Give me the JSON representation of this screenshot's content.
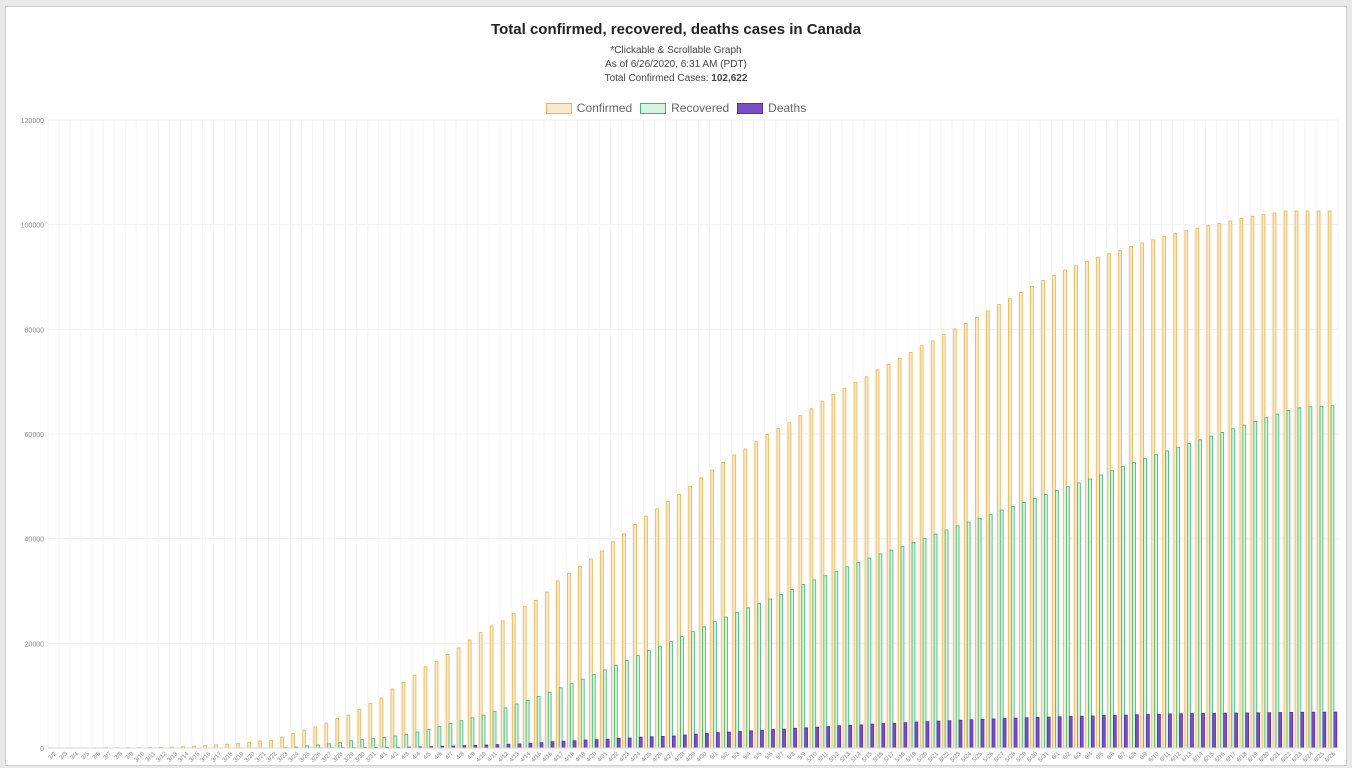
{
  "header": {
    "title": "Total confirmed, recovered, deaths cases in Canada",
    "note": "*Clickable & Scrollable Graph",
    "as_of": "As of 6/26/2020, 6:31 AM (PDT)",
    "total_label": "Total Confirmed Cases:",
    "total_value": "102,622"
  },
  "colors": {
    "confirmed_fill": "#fde9c7",
    "confirmed_border": "#eab44c",
    "recovered_fill": "#d5f5e3",
    "recovered_border": "#3fb56f",
    "deaths_fill": "#7b4fc6",
    "deaths_border": "#5b2ea6",
    "grid": "#f0f0f0",
    "tick": "#888888"
  },
  "chart_data": {
    "type": "bar",
    "title": "Total confirmed, recovered, deaths cases in Canada",
    "xlabel": "",
    "ylabel": "",
    "ylim": [
      0,
      120000
    ],
    "yticks": [
      0,
      20000,
      40000,
      60000,
      80000,
      100000,
      120000
    ],
    "grid": true,
    "legend_position": "top-center",
    "categories": [
      "3/2",
      "3/3",
      "3/4",
      "3/5",
      "3/6",
      "3/7",
      "3/8",
      "3/9",
      "3/10",
      "3/11",
      "3/12",
      "3/13",
      "3/14",
      "3/15",
      "3/16",
      "3/17",
      "3/18",
      "3/19",
      "3/20",
      "3/21",
      "3/22",
      "3/23",
      "3/24",
      "3/25",
      "3/26",
      "3/27",
      "3/28",
      "3/29",
      "3/30",
      "3/31",
      "4/1",
      "4/2",
      "4/3",
      "4/4",
      "4/5",
      "4/6",
      "4/7",
      "4/8",
      "4/9",
      "4/10",
      "4/11",
      "4/12",
      "4/13",
      "4/14",
      "4/15",
      "4/16",
      "4/17",
      "4/18",
      "4/19",
      "4/20",
      "4/21",
      "4/22",
      "4/23",
      "4/24",
      "4/25",
      "4/26",
      "4/27",
      "4/28",
      "4/29",
      "4/30",
      "5/1",
      "5/2",
      "5/3",
      "5/4",
      "5/5",
      "5/6",
      "5/7",
      "5/8",
      "5/9",
      "5/10",
      "5/11",
      "5/12",
      "5/13",
      "5/14",
      "5/15",
      "5/16",
      "5/17",
      "5/18",
      "5/19",
      "5/20",
      "5/21",
      "5/22",
      "5/23",
      "5/24",
      "5/25",
      "5/26",
      "5/27",
      "5/28",
      "5/29",
      "5/30",
      "5/31",
      "6/1",
      "6/2",
      "6/3",
      "6/4",
      "6/5",
      "6/6",
      "6/7",
      "6/8",
      "6/9",
      "6/10",
      "6/11",
      "6/12",
      "6/13",
      "6/14",
      "6/15",
      "6/16",
      "6/17",
      "6/18",
      "6/19",
      "6/20",
      "6/21",
      "6/22",
      "6/23",
      "6/24",
      "6/25",
      "6/26"
    ],
    "series": [
      {
        "name": "Confirmed",
        "values": [
          27,
          30,
          33,
          37,
          49,
          57,
          64,
          77,
          93,
          108,
          138,
          193,
          252,
          341,
          441,
          598,
          727,
          873,
          1087,
          1324,
          1470,
          2091,
          2792,
          3409,
          4043,
          4757,
          5655,
          6280,
          7398,
          8527,
          9560,
          11284,
          12519,
          13912,
          15512,
          16563,
          17883,
          19141,
          20654,
          22046,
          23316,
          24298,
          25680,
          27034,
          28208,
          29815,
          31927,
          33383,
          34659,
          36112,
          37658,
          39402,
          40935,
          42732,
          44307,
          45702,
          47132,
          48450,
          50007,
          51597,
          53104,
          54560,
          55991,
          57146,
          58539,
          59889,
          61061,
          62146,
          63513,
          64815,
          66264,
          67579,
          68751,
          69886,
          70919,
          72258,
          73307,
          74473,
          75585,
          76866,
          77798,
          78991,
          80095,
          81114,
          82279,
          83506,
          84758,
          85852,
          87046,
          88181,
          89340,
          90300,
          91322,
          92142,
          93009,
          93772,
          94451,
          95053,
          95811,
          96516,
          97114,
          97755,
          98345,
          98837,
          99337,
          99810,
          100249,
          100700,
          101205,
          101611,
          101917,
          102242,
          102622,
          102622,
          102622,
          102622,
          102622
        ]
      },
      {
        "name": "Recovered",
        "values": [
          6,
          6,
          6,
          6,
          8,
          8,
          8,
          8,
          8,
          8,
          8,
          8,
          8,
          8,
          9,
          9,
          9,
          9,
          9,
          11,
          14,
          82,
          185,
          398,
          576,
          789,
          1000,
          1372,
          1586,
          1785,
          2041,
          2298,
          2595,
          3051,
          3526,
          4079,
          4692,
          5210,
          5763,
          6285,
          7008,
          7655,
          8413,
          9110,
          9864,
          10662,
          11512,
          12357,
          13160,
          14049,
          14929,
          15821,
          16721,
          17658,
          18595,
          19449,
          20327,
          21282,
          22236,
          23152,
          24126,
          25015,
          25886,
          26786,
          27646,
          28461,
          29327,
          30281,
          31248,
          32115,
          32924,
          33764,
          34622,
          35475,
          36286,
          37088,
          37811,
          38547,
          39291,
          40065,
          40870,
          41668,
          42453,
          43171,
          43898,
          44668,
          45470,
          46176,
          46912,
          47668,
          48425,
          49185,
          49925,
          50654,
          51402,
          52165,
          52978,
          53763,
          54555,
          55326,
          56048,
          56763,
          57471,
          58177,
          58894,
          59604,
          60311,
          61004,
          61704,
          62404,
          63111,
          63803,
          64514,
          65000,
          65200,
          65300,
          65400
        ]
      },
      {
        "name": "Deaths",
        "values": [
          0,
          0,
          0,
          0,
          0,
          0,
          0,
          0,
          1,
          1,
          1,
          1,
          1,
          1,
          4,
          5,
          8,
          12,
          13,
          19,
          20,
          24,
          26,
          35,
          39,
          54,
          61,
          65,
          80,
          101,
          108,
          136,
          175,
          217,
          257,
          323,
          381,
          452,
          504,
          569,
          653,
          714,
          780,
          900,
          1010,
          1195,
          1301,
          1399,
          1521,
          1587,
          1690,
          1834,
          1915,
          2076,
          2150,
          2207,
          2289,
          2493,
          2658,
          2800,
          2941,
          3046,
          3154,
          3281,
          3391,
          3532,
          3617,
          3765,
          3854,
          3974,
          4103,
          4260,
          4344,
          4421,
          4563,
          4674,
          4717,
          4845,
          4963,
          5034,
          5140,
          5211,
          5312,
          5404,
          5478,
          5553,
          5628,
          5702,
          5781,
          5847,
          5911,
          5971,
          6028,
          6077,
          6121,
          6198,
          6212,
          6285,
          6355,
          6432,
          6456,
          6515,
          6553,
          6586,
          6613,
          6639,
          6659,
          6684,
          6701,
          6728,
          6753,
          6780,
          6803,
          6824,
          6840,
          6851,
          6862
        ]
      }
    ]
  }
}
